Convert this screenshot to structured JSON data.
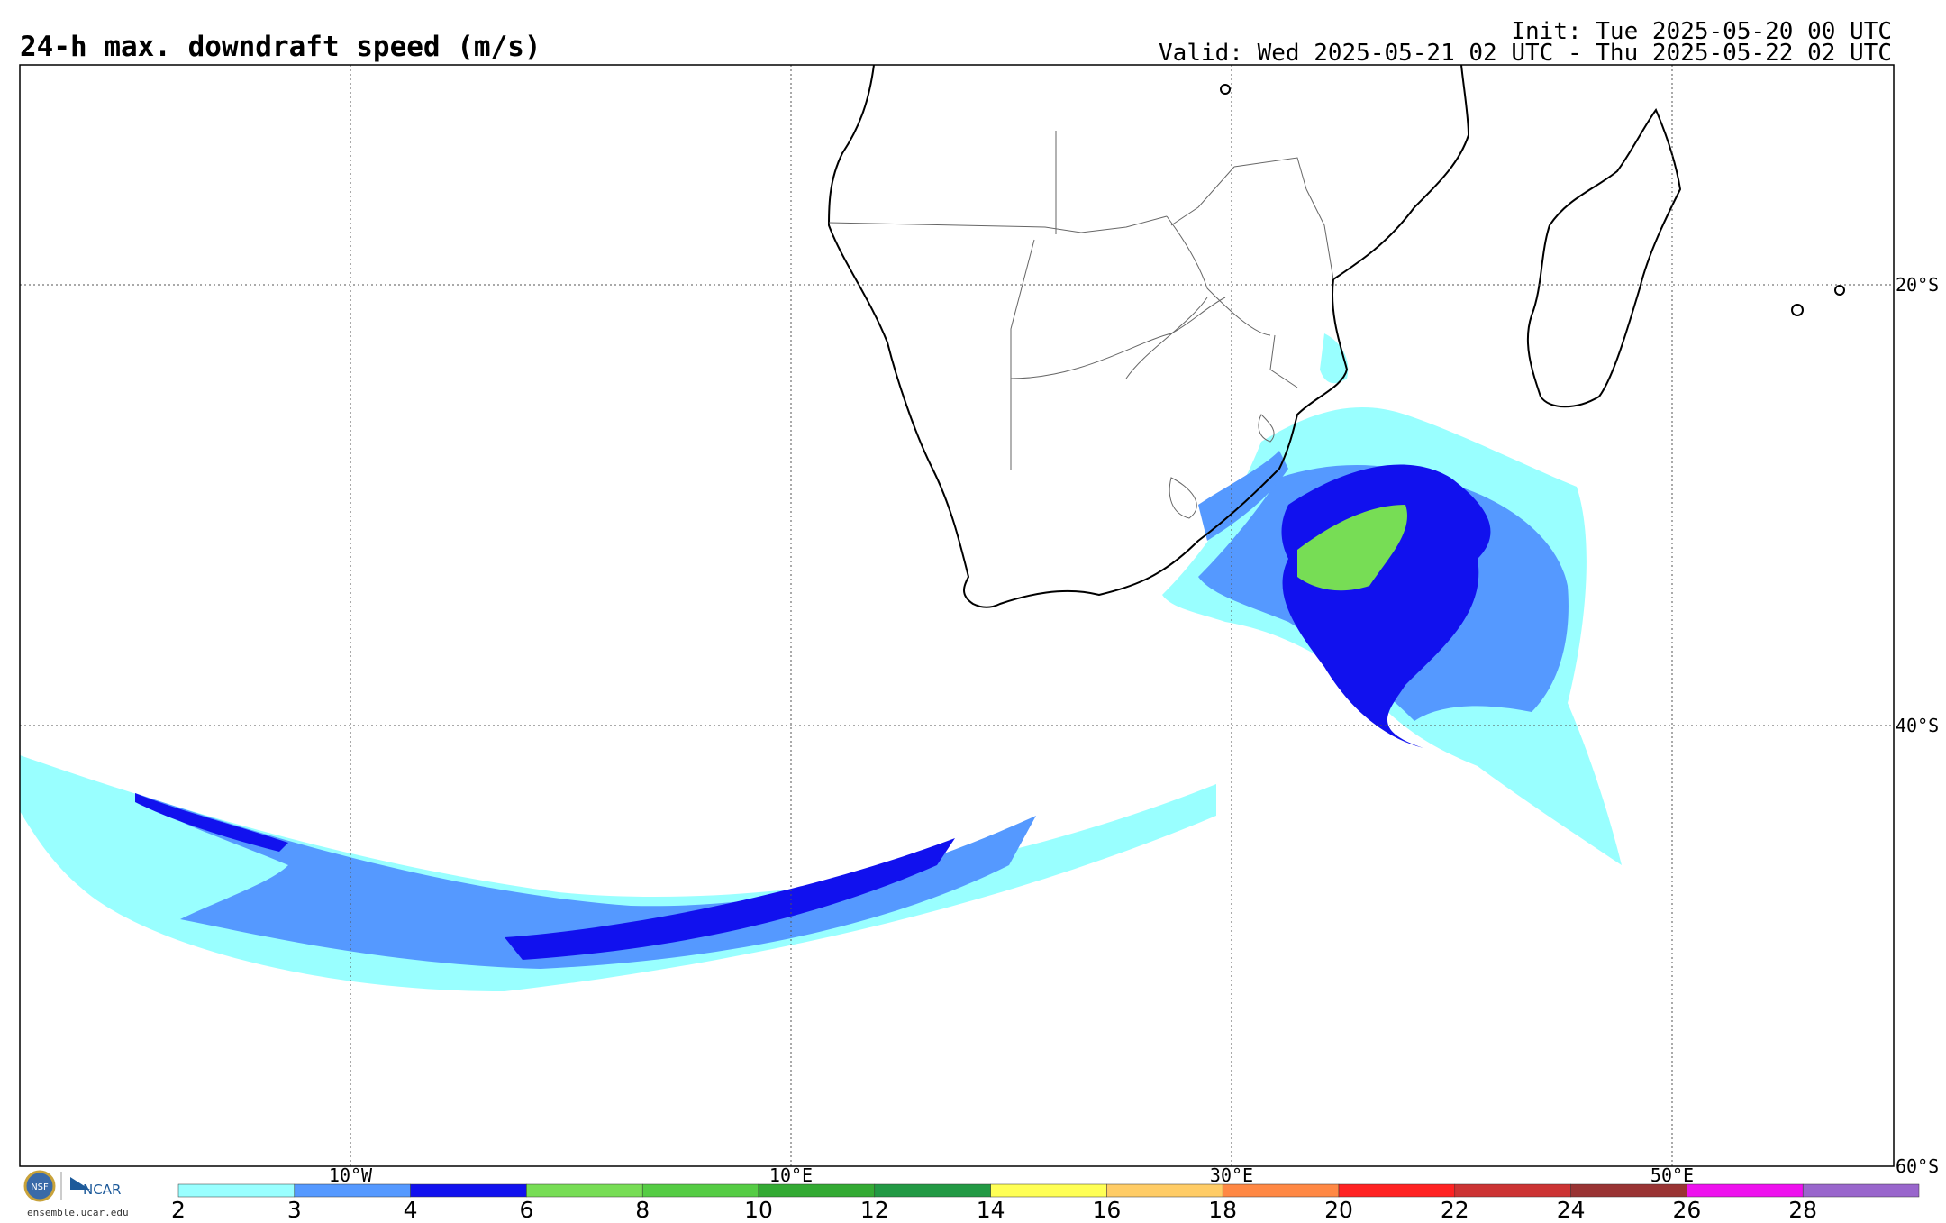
{
  "header": {
    "title": "24-h max. downdraft speed (m/s)",
    "init": "Init: Tue 2025-05-20 00 UTC",
    "valid": "Valid: Wed 2025-05-21 02 UTC - Thu 2025-05-22 02 UTC"
  },
  "map": {
    "lat_labels": [
      "20°S",
      "40°S",
      "60°S"
    ],
    "lon_labels": [
      "10°W",
      "10°E",
      "30°E",
      "50°E"
    ]
  },
  "colorbar": {
    "labels": [
      "2",
      "3",
      "4",
      "6",
      "8",
      "10",
      "12",
      "14",
      "16",
      "18",
      "20",
      "22",
      "24",
      "26",
      "28"
    ],
    "colors": [
      "#99ffff",
      "#5599ff",
      "#1111ee",
      "#77dd55",
      "#55cc44",
      "#33aa33",
      "#229944",
      "#ffff55",
      "#ffcc66",
      "#ff8844",
      "#ff2222",
      "#cc3333",
      "#993333",
      "#ee11ee",
      "#9966cc"
    ]
  },
  "field_colors": {
    "light": "#99ffff",
    "medium": "#5599ff",
    "dark": "#1111ee",
    "green": "#77dd55"
  },
  "logo": {
    "nsf": "NSF",
    "ncar": "NCAR",
    "url": "ensemble.ucar.edu"
  }
}
